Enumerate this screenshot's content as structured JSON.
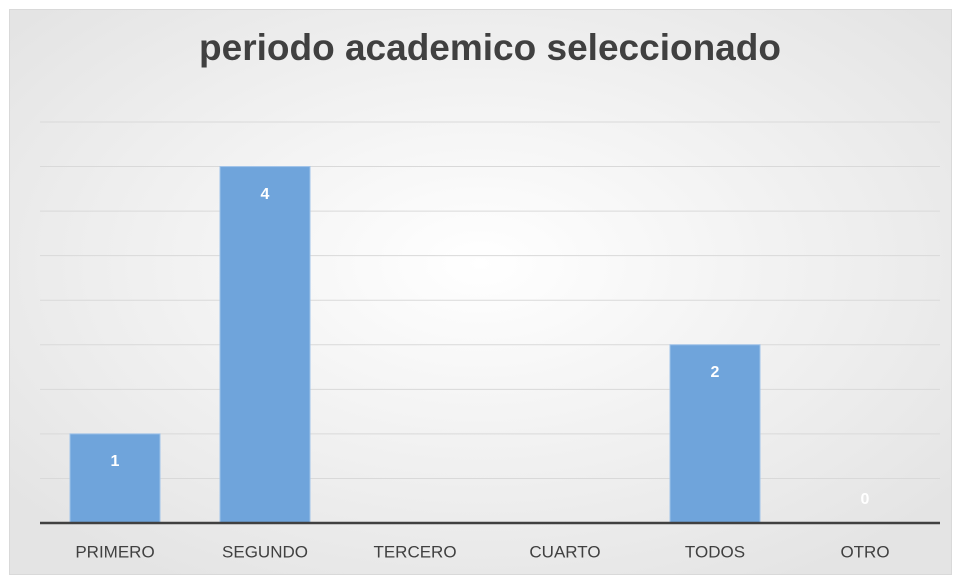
{
  "chart_data": {
    "type": "bar",
    "title": "periodo academico seleccionado",
    "categories": [
      "PRIMERO",
      "SEGUNDO",
      "TERCERO",
      "CUARTO",
      "TODOS",
      "OTRO"
    ],
    "values": [
      1,
      4,
      null,
      null,
      2,
      0
    ],
    "color": "#6fa4db",
    "ylim": [
      0,
      4.5
    ],
    "yticks": [
      0,
      0.5,
      1,
      1.5,
      2,
      2.5,
      3,
      3.5,
      4,
      4.5
    ],
    "grid": true
  }
}
